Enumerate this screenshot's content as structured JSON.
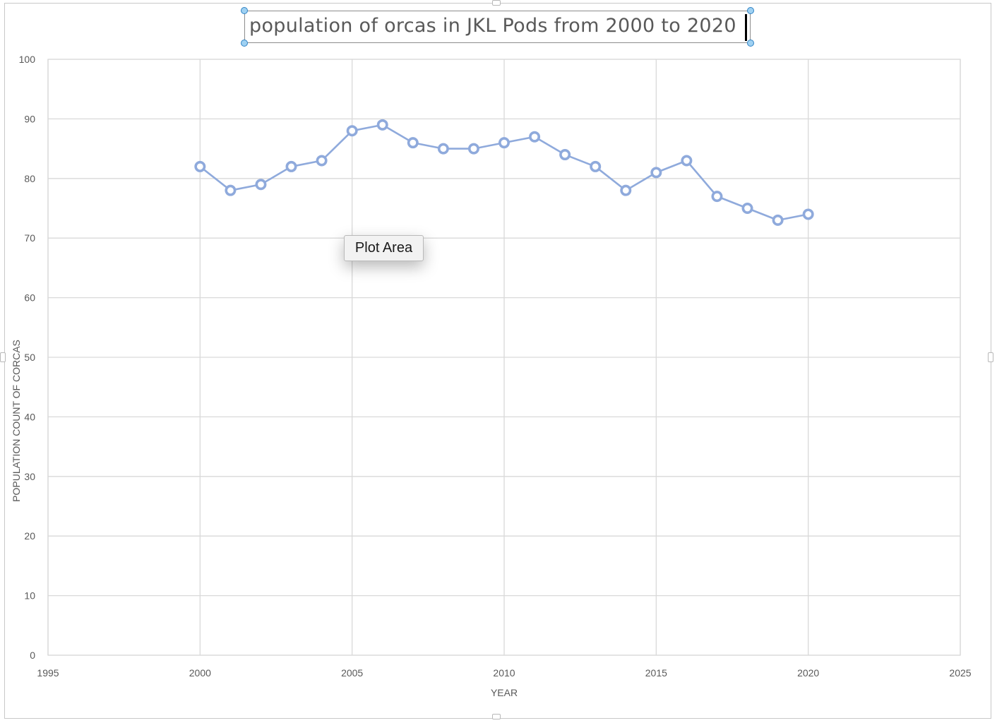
{
  "chart_data": {
    "type": "scatter",
    "title": "population of orcas in JKL Pods from 2000 to 2020",
    "xlabel": "YEAR",
    "ylabel": "POPULATION COUNT OF CORCAS",
    "xlim": [
      1995,
      2025
    ],
    "ylim": [
      0,
      100
    ],
    "x_ticks": [
      1995,
      2000,
      2005,
      2010,
      2015,
      2020,
      2025
    ],
    "y_ticks": [
      0,
      10,
      20,
      30,
      40,
      50,
      60,
      70,
      80,
      90,
      100
    ],
    "grid": true,
    "legend": "none",
    "series": [
      {
        "x": [
          2000,
          2001,
          2002,
          2003,
          2004,
          2005,
          2006,
          2007,
          2008,
          2009,
          2010,
          2011,
          2012,
          2013,
          2014,
          2015,
          2016,
          2017,
          2018,
          2019,
          2020
        ],
        "y": [
          82,
          78,
          79,
          82,
          83,
          88,
          89,
          86,
          85,
          85,
          86,
          87,
          84,
          82,
          78,
          81,
          83,
          77,
          75,
          73,
          74
        ],
        "color": "#8faadc",
        "style": "lines-and-markers"
      }
    ]
  },
  "tooltip": {
    "text": "Plot Area"
  },
  "colors": {
    "series": "#8faadc",
    "grid": "#d9d9d9",
    "axis_text": "#595959",
    "selection": "#2f82c4"
  }
}
